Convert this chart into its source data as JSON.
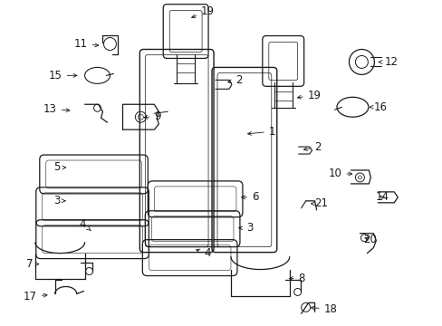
{
  "background_color": "#ffffff",
  "figsize": [
    4.89,
    3.6
  ],
  "dpi": 100,
  "line_color": "#1a1a1a",
  "label_fontsize": 8.5,
  "label_color": "#1a1a1a"
}
